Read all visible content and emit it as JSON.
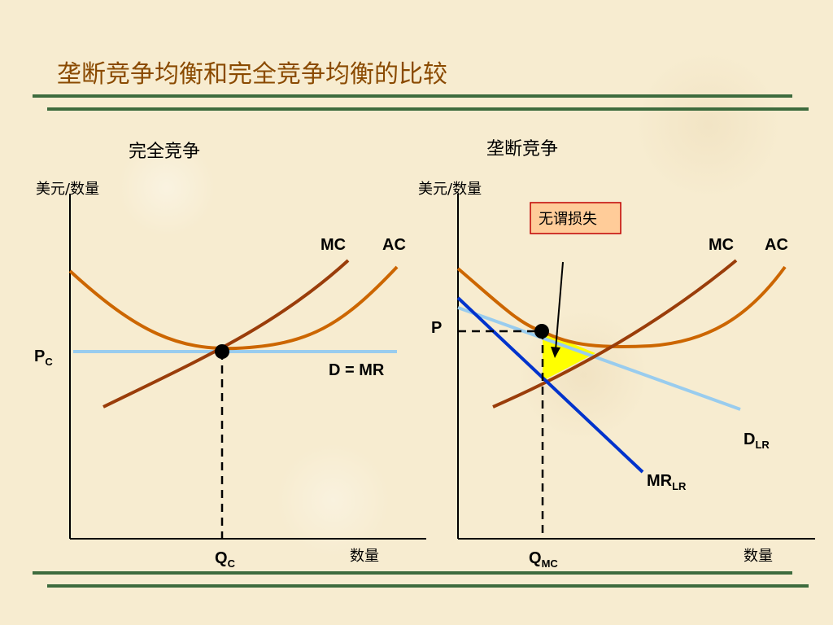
{
  "title": "垄断竞争均衡和完全竞争均衡的比较",
  "left": {
    "heading": "完全竞争",
    "y_axis_label": "美元/数量",
    "x_axis_label": "数量",
    "mc_label": "MC",
    "ac_label": "AC",
    "demand_label": "D = MR",
    "price_label": "P",
    "price_sub": "C",
    "qty_label": "Q",
    "qty_sub": "C"
  },
  "right": {
    "heading": "垄断竞争",
    "y_axis_label": "美元/数量",
    "x_axis_label": "数量",
    "mc_label": "MC",
    "ac_label": "AC",
    "deadweight_label": "无谓损失",
    "price_label": "P",
    "demand_label": "D",
    "demand_sub": "LR",
    "mr_label": "MR",
    "mr_sub": "LR",
    "qty_label": "Q",
    "qty_sub": "MC"
  },
  "colors": {
    "title": "#8a4a00",
    "rule": "#3d6b3d",
    "mc_curve": "#9a3d0a",
    "ac_curve": "#cc6600",
    "demand_curve": "#99ccee",
    "mr_curve": "#0033cc",
    "deadweight": "#ffff00",
    "callout_fill": "#ffcc99",
    "callout_border": "#c00000"
  }
}
